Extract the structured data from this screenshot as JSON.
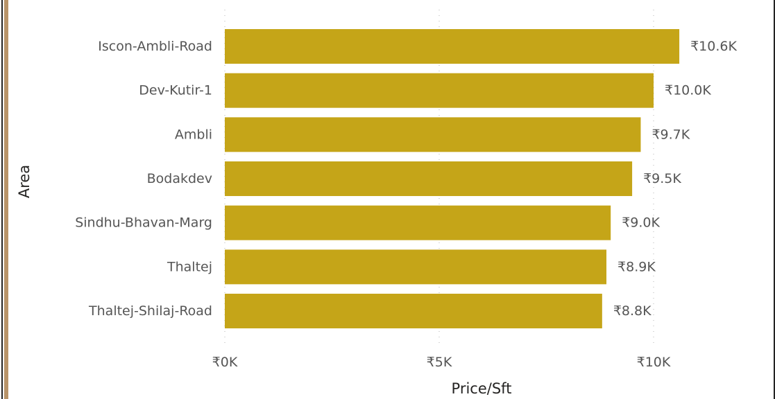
{
  "chart_data": {
    "type": "bar",
    "orientation": "horizontal",
    "categories": [
      "Iscon-Ambli-Road",
      "Dev-Kutir-1",
      "Ambli",
      "Bodakdev",
      "Sindhu-Bhavan-Marg",
      "Thaltej",
      "Thaltej-Shilaj-Road"
    ],
    "values": [
      10600,
      10000,
      9700,
      9500,
      9000,
      8900,
      8800
    ],
    "value_labels": [
      "₹10.6K",
      "₹10.0K",
      "₹9.7K",
      "₹9.5K",
      "₹9.0K",
      "₹8.9K",
      "₹8.8K"
    ],
    "xlabel": "Price/Sft",
    "ylabel": "Area",
    "xlim": [
      0,
      11500
    ],
    "x_ticks": [
      0,
      5000,
      10000
    ],
    "x_tick_labels": [
      "₹0K",
      "₹5K",
      "₹10K"
    ],
    "grid": true,
    "legend": "none",
    "bar_color": "#c5a518"
  }
}
